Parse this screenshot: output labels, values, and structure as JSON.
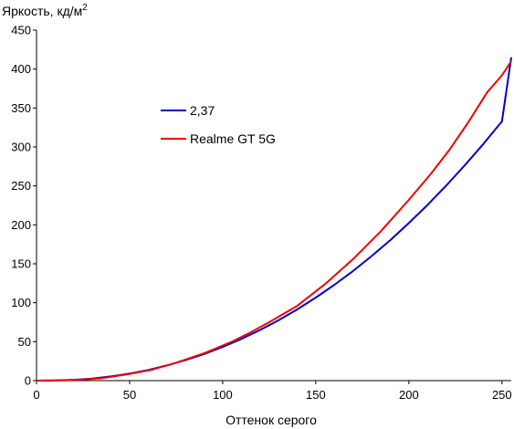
{
  "chart_data": {
    "type": "line",
    "ylabel": "Яркость, кд/м",
    "ylabel_sup": "2",
    "xlabel": "Оттенок серого",
    "xlim": [
      0,
      255
    ],
    "ylim": [
      0,
      450
    ],
    "xticks": [
      0,
      50,
      100,
      150,
      200,
      250
    ],
    "yticks": [
      0,
      50,
      100,
      150,
      200,
      250,
      300,
      350,
      400,
      450
    ],
    "grid": false,
    "legend_position": "upper-left-inside",
    "series": [
      {
        "name": "2,37",
        "color": "#0000cc",
        "x": [
          0,
          10,
          20,
          30,
          40,
          50,
          60,
          70,
          80,
          90,
          100,
          110,
          120,
          130,
          140,
          150,
          160,
          170,
          180,
          190,
          200,
          210,
          220,
          230,
          240,
          250,
          255
        ],
        "y": [
          0,
          0.2,
          1.0,
          2.7,
          5.4,
          9.0,
          13.6,
          19.4,
          26.2,
          34.1,
          43.2,
          53.4,
          64.9,
          77.5,
          91.4,
          106.6,
          123.1,
          140.8,
          160.0,
          180.4,
          202.3,
          225.5,
          250.2,
          276.3,
          303.8,
          332.8,
          415.0
        ]
      },
      {
        "name": "Realme GT 5G",
        "color": "#ee0000",
        "x": [
          0,
          15,
          25,
          35,
          50,
          62,
          75,
          90,
          105,
          115,
          125,
          140,
          155,
          170,
          185,
          200,
          212,
          222,
          232,
          242,
          250,
          255
        ],
        "y": [
          0,
          0.5,
          1.5,
          3.0,
          8.5,
          14.0,
          23.0,
          35.0,
          50.0,
          62.0,
          75.0,
          96.0,
          124.0,
          156.0,
          192.0,
          232.0,
          266.0,
          297.0,
          332.0,
          370.0,
          392.0,
          410.0
        ]
      }
    ]
  }
}
